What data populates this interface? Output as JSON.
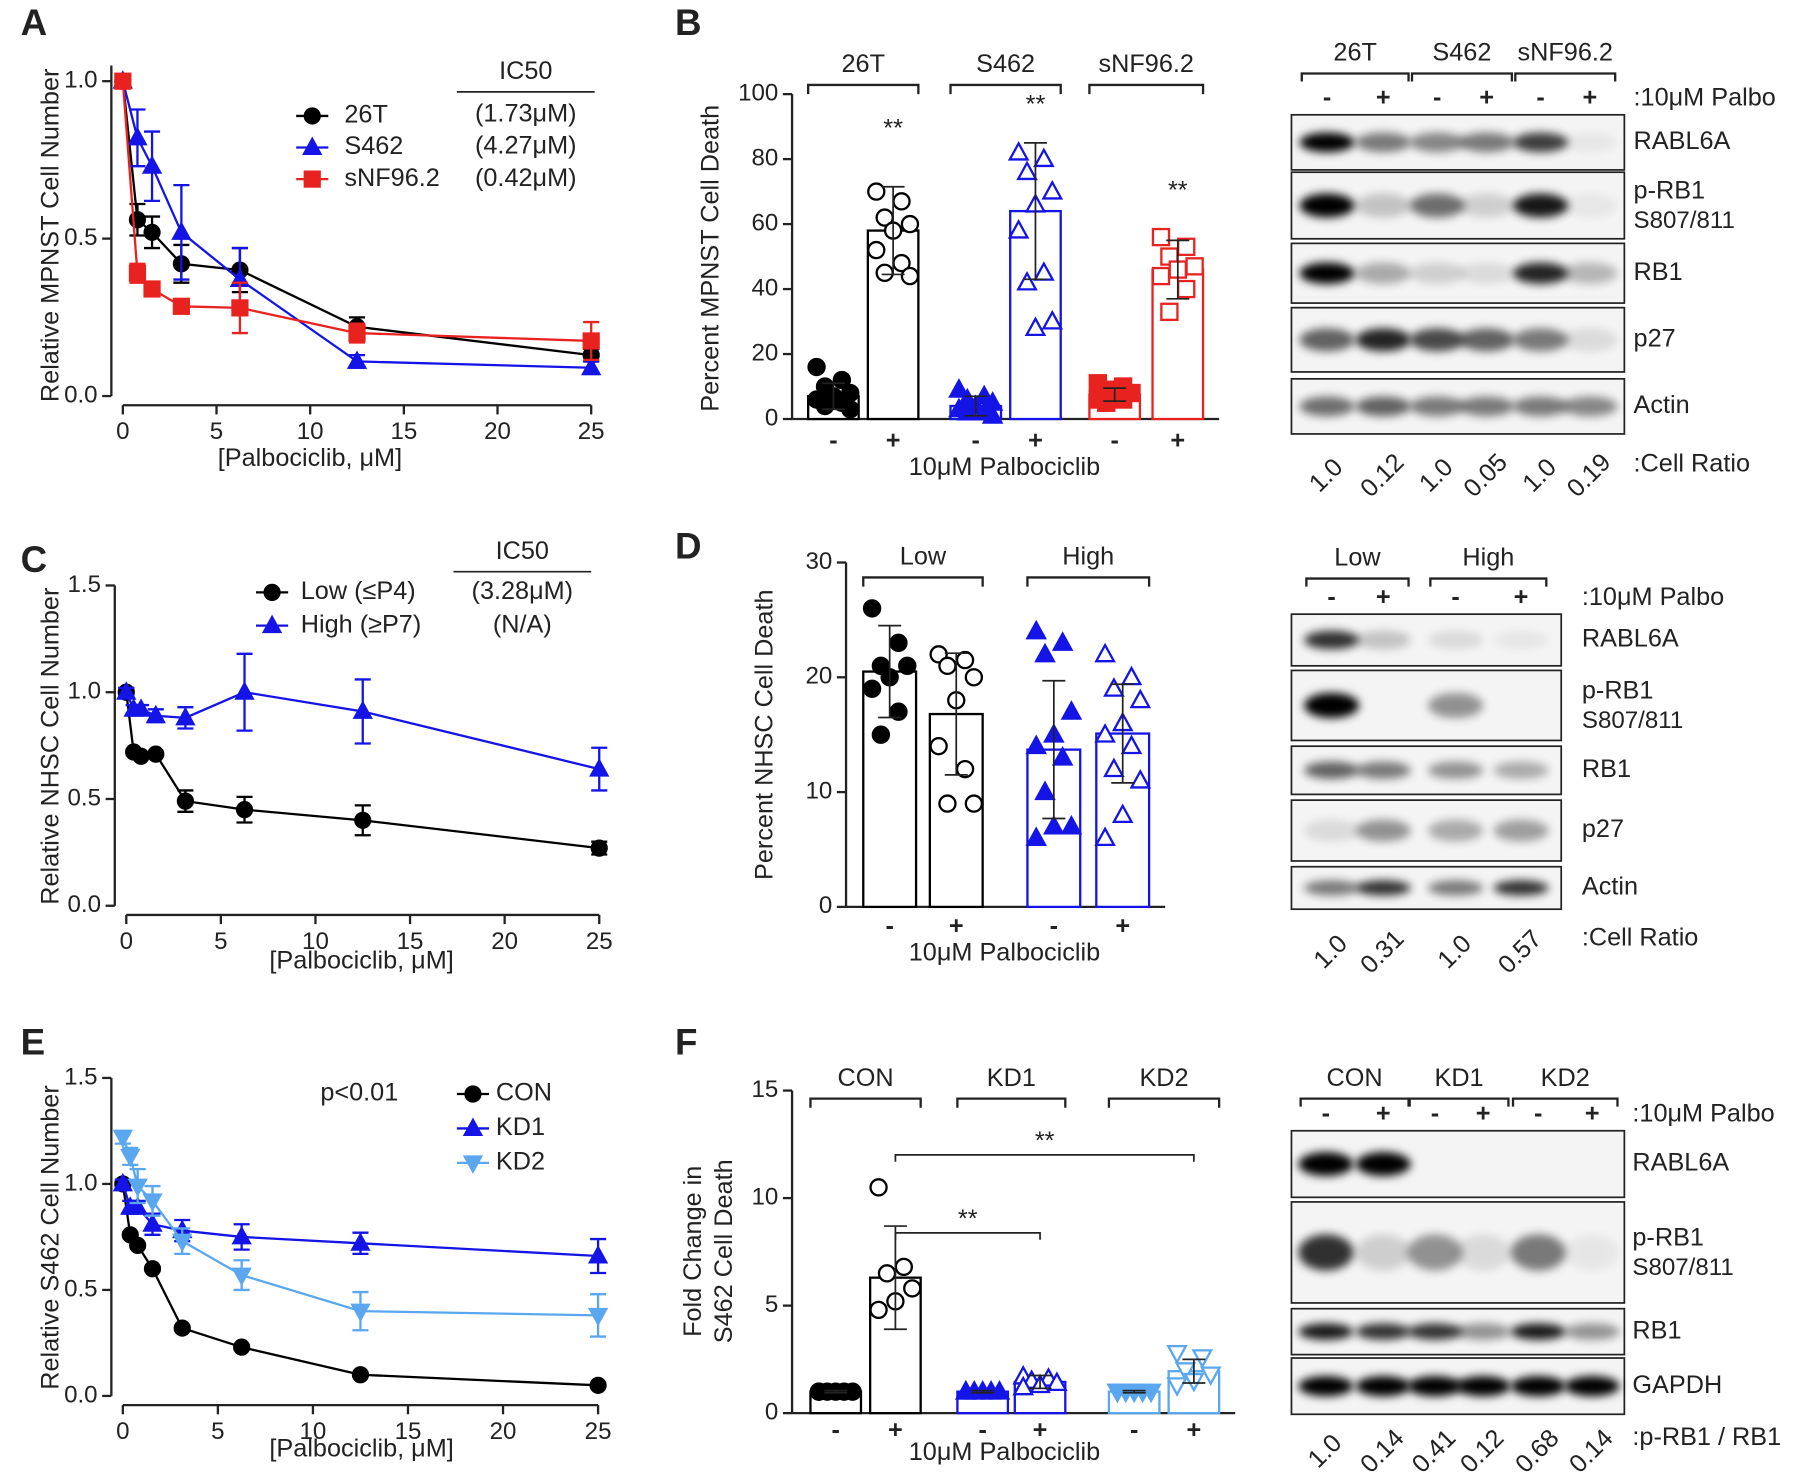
{
  "panels": [
    "A",
    "B",
    "C",
    "D",
    "E",
    "F"
  ],
  "chart_data": [
    {
      "type": "line",
      "ylabel": "Relative MPNST Cell Number",
      "xlabel": "[Palbociclib, μM]",
      "x": [
        0,
        0.78,
        1.56,
        3.125,
        6.25,
        12.5,
        25
      ],
      "series": [
        {
          "name": "26T",
          "color": "#000000",
          "marker": "circle",
          "values": [
            1.0,
            0.56,
            0.52,
            0.42,
            0.4,
            0.22,
            0.13
          ],
          "errors": [
            0.01,
            0.05,
            0.05,
            0.06,
            0.07,
            0.03,
            0.02
          ]
        },
        {
          "name": "S462",
          "color": "#1414e6",
          "marker": "triangle",
          "values": [
            1.0,
            0.82,
            0.73,
            0.52,
            0.37,
            0.11,
            0.09
          ],
          "errors": [
            0.01,
            0.09,
            0.11,
            0.15,
            0.1,
            0.02,
            0.02
          ]
        },
        {
          "name": "sNF96.2",
          "color": "#e8231f",
          "marker": "square",
          "values": [
            1.0,
            0.39,
            0.34,
            0.285,
            0.28,
            0.2,
            0.175
          ],
          "errors": [
            0.01,
            0.03,
            0.01,
            0.01,
            0.08,
            0.03,
            0.06
          ]
        }
      ],
      "xlim": [
        0,
        25
      ],
      "ylim": [
        0,
        1.05
      ],
      "xticks": [
        0,
        5,
        10,
        15,
        20,
        25
      ],
      "yticks": [
        {
          "value": 0,
          "label": "0.0"
        },
        {
          "value": 0.5,
          "label": "0.5"
        },
        {
          "value": 1,
          "label": "1.0"
        }
      ],
      "annotations": [
        "IC50",
        "(1.73μM)",
        "(4.27μM)",
        "(0.42μM)"
      ]
    },
    {
      "type": "bar",
      "ylabel": "Percent MPNST Cell Death",
      "xlabel": "10μM Palbociclib",
      "groups": [
        "26T",
        "S462",
        "sNF96.2"
      ],
      "categories": [
        "-",
        "+",
        "-",
        "+",
        "-",
        "+"
      ],
      "values": [
        7,
        58,
        4,
        64,
        7.5,
        46
      ],
      "errors": [
        4,
        13.5,
        3,
        21,
        2,
        9
      ],
      "points": [
        [
          16,
          12,
          10,
          8,
          7,
          6,
          5,
          4,
          3
        ],
        [
          70,
          67,
          62,
          60,
          58,
          52,
          48,
          45,
          44
        ],
        [
          9,
          7,
          6,
          5,
          4,
          3,
          2,
          2,
          1
        ],
        [
          82,
          80,
          76,
          70,
          66,
          58,
          45,
          42,
          30,
          28
        ],
        [
          11,
          10,
          9,
          8,
          7,
          6,
          6,
          5
        ],
        [
          56,
          53,
          50,
          47,
          46,
          44,
          40,
          33
        ]
      ],
      "colors": [
        "#000000",
        "#000000",
        "#1414e6",
        "#1414e6",
        "#e8231f",
        "#e8231f"
      ],
      "markers": [
        "circle",
        "circle",
        "triangle",
        "triangle",
        "square",
        "square"
      ],
      "filled": [
        true,
        false,
        true,
        false,
        true,
        false
      ],
      "ylim": [
        0,
        100
      ],
      "yticks": [
        0,
        20,
        40,
        60,
        80,
        100
      ],
      "annotations": [
        "**",
        "**",
        "**"
      ]
    },
    {
      "type": "line",
      "ylabel": "Relative NHSC Cell Number",
      "xlabel": "[Palbociclib, μM]",
      "x": [
        0,
        0.39,
        0.78,
        1.56,
        3.125,
        6.25,
        12.5,
        25
      ],
      "series": [
        {
          "name": "Low (≤P4)",
          "color": "#000000",
          "marker": "circle",
          "values": [
            1.0,
            0.72,
            0.7,
            0.71,
            0.49,
            0.45,
            0.4,
            0.27
          ],
          "errors": [
            0.02,
            0.01,
            0.01,
            0.01,
            0.05,
            0.06,
            0.07,
            0.03
          ]
        },
        {
          "name": "High (≥P7)",
          "color": "#1414e6",
          "marker": "triangle",
          "values": [
            1.0,
            0.92,
            0.92,
            0.89,
            0.88,
            1.0,
            0.91,
            0.64
          ],
          "errors": [
            0.02,
            0.02,
            0.02,
            0.03,
            0.05,
            0.18,
            0.15,
            0.1
          ]
        }
      ],
      "xlim": [
        0,
        25
      ],
      "ylim": [
        0,
        1.5
      ],
      "xticks": [
        0,
        5,
        10,
        15,
        20,
        25
      ],
      "yticks": [
        {
          "value": 0,
          "label": "0.0"
        },
        {
          "value": 0.5,
          "label": "0.5"
        },
        {
          "value": 1,
          "label": "1.0"
        },
        {
          "value": 1.5,
          "label": "1.5"
        }
      ],
      "annotations": [
        "IC50",
        "(3.28μM)",
        "(N/A)"
      ]
    },
    {
      "type": "bar",
      "ylabel": "Percent NHSC Cell Death",
      "xlabel": "10μM Palbociclib",
      "groups": [
        "Low",
        "High"
      ],
      "categories": [
        "-",
        "+",
        "-",
        "+"
      ],
      "values": [
        20.5,
        16.8,
        13.7,
        15.1
      ],
      "errors": [
        4,
        5.3,
        6,
        4.3
      ],
      "points": [
        [
          26,
          23,
          21,
          21,
          20,
          19,
          17,
          15
        ],
        [
          22,
          21.5,
          21,
          20,
          18,
          14,
          12,
          9,
          9
        ],
        [
          24,
          23,
          22,
          17,
          15,
          14,
          13,
          10,
          7,
          7,
          6
        ],
        [
          22,
          20,
          19,
          18,
          16,
          15,
          14,
          12,
          11,
          8,
          6
        ]
      ],
      "colors": [
        "#000000",
        "#000000",
        "#1414e6",
        "#1414e6"
      ],
      "markers": [
        "circle",
        "circle",
        "triangle",
        "triangle"
      ],
      "filled": [
        true,
        false,
        true,
        false
      ],
      "ylim": [
        0,
        30
      ],
      "yticks": [
        0,
        10,
        20,
        30
      ]
    },
    {
      "type": "line",
      "ylabel": "Relative S462 Cell Number",
      "xlabel": "[Palbociclib, μM]",
      "x": [
        0,
        0.39,
        0.78,
        1.56,
        3.125,
        6.25,
        12.5,
        25
      ],
      "series": [
        {
          "name": "CON",
          "color": "#000000",
          "marker": "circle",
          "values": [
            1.0,
            0.76,
            0.71,
            0.6,
            0.32,
            0.23,
            0.1,
            0.05
          ],
          "errors": [
            0.01,
            0.01,
            0.01,
            0.01,
            0.01,
            0.01,
            0.01,
            0.01
          ]
        },
        {
          "name": "KD1",
          "color": "#1414e6",
          "marker": "triangle",
          "values": [
            1.0,
            0.89,
            0.89,
            0.81,
            0.78,
            0.75,
            0.72,
            0.66
          ],
          "errors": [
            0.02,
            0.03,
            0.03,
            0.05,
            0.05,
            0.06,
            0.05,
            0.08
          ]
        },
        {
          "name": "KD2",
          "color": "#5aa7f0",
          "marker": "triangle-down",
          "values": [
            1.22,
            1.13,
            0.99,
            0.92,
            0.73,
            0.57,
            0.4,
            0.38
          ],
          "errors": [
            0.03,
            0.04,
            0.08,
            0.07,
            0.06,
            0.07,
            0.09,
            0.1
          ]
        }
      ],
      "xlim": [
        0,
        25
      ],
      "ylim": [
        0,
        1.5
      ],
      "xticks": [
        0,
        5,
        10,
        15,
        20,
        25
      ],
      "yticks": [
        {
          "value": 0,
          "label": "0.0"
        },
        {
          "value": 0.5,
          "label": "0.5"
        },
        {
          "value": 1,
          "label": "1.0"
        },
        {
          "value": 1.5,
          "label": "1.5"
        }
      ],
      "annotations": [
        "p<0.01"
      ]
    },
    {
      "type": "bar",
      "ylabel": [
        "Fold Change in",
        "S462 Cell Death"
      ],
      "xlabel": "10μM Palbociclib",
      "groups": [
        "CON",
        "KD1",
        "KD2"
      ],
      "categories": [
        "-",
        "+",
        "-",
        "+",
        "-",
        "+"
      ],
      "values": [
        1.0,
        6.3,
        1.0,
        1.45,
        1.0,
        1.95
      ],
      "errors": [
        0.05,
        2.4,
        0.05,
        0.3,
        0.05,
        0.55
      ],
      "points": [
        [
          1,
          1,
          1,
          1,
          1,
          1
        ],
        [
          10.5,
          6.8,
          6.5,
          5.8,
          5.2,
          4.8
        ],
        [
          1,
          1,
          1,
          1,
          1,
          1
        ],
        [
          1.7,
          1.6,
          1.5,
          1.4,
          1.3,
          1.2
        ],
        [
          1,
          1,
          1,
          1,
          1,
          1
        ],
        [
          2.8,
          2.6,
          2.0,
          1.8,
          1.5,
          1.3
        ]
      ],
      "colors": [
        "#000000",
        "#000000",
        "#1414e6",
        "#1414e6",
        "#5aa7f0",
        "#5aa7f0"
      ],
      "markers": [
        "circle",
        "circle",
        "triangle",
        "triangle",
        "triangle-down",
        "triangle-down"
      ],
      "filled": [
        true,
        false,
        true,
        false,
        true,
        false
      ],
      "ylim": [
        0,
        15
      ],
      "yticks": [
        0,
        5,
        10,
        15
      ],
      "annotations": [
        "**",
        "**"
      ]
    }
  ],
  "blots": [
    {
      "groups": [
        "26T",
        "S462",
        "sNF96.2"
      ],
      "signs": [
        "-",
        "+",
        "-",
        "+",
        "-",
        "+"
      ],
      "treatment": ":10μM Palbo",
      "rows": [
        "RABL6A",
        "p-RB1",
        "RB1",
        "p27",
        "Actin"
      ],
      "phospho_site": "S807/811",
      "ratios": [
        "1.0",
        "0.12",
        "1.0",
        "0.05",
        "1.0",
        "0.19"
      ],
      "ratio_label": ":Cell Ratio"
    },
    {
      "groups": [
        "Low",
        "High"
      ],
      "signs": [
        "-",
        "+",
        "-",
        "+"
      ],
      "treatment": ":10μM Palbo",
      "rows": [
        "RABL6A",
        "p-RB1",
        "RB1",
        "p27",
        "Actin"
      ],
      "phospho_site": "S807/811",
      "ratios": [
        "1.0",
        "0.31",
        "1.0",
        "0.57"
      ],
      "ratio_label": ":Cell Ratio"
    },
    {
      "groups": [
        "CON",
        "KD1",
        "KD2"
      ],
      "signs": [
        "-",
        "+",
        "-",
        "+",
        "-",
        "+"
      ],
      "treatment": ":10μM Palbo",
      "rows": [
        "RABL6A",
        "p-RB1",
        "RB1",
        "GAPDH"
      ],
      "phospho_site": "S807/811",
      "ratios": [
        "1.0",
        "0.14",
        "0.41",
        "0.12",
        "0.68",
        "0.14"
      ],
      "ratio_label": ":p-RB1 / RB1"
    }
  ]
}
